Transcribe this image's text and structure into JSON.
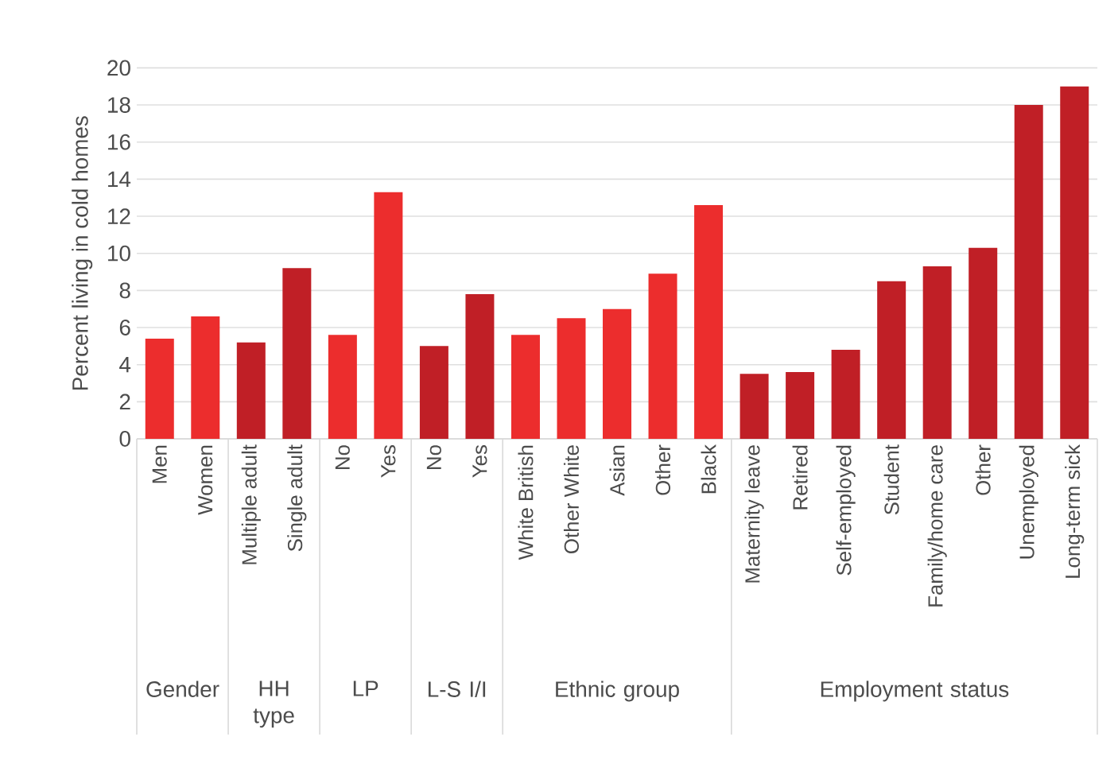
{
  "chart_data": {
    "type": "bar",
    "ylabel": "Percent living in cold homes",
    "categories": [
      "Men",
      "Women",
      "Multiple adult",
      "Single adult",
      "No",
      "Yes",
      "No",
      "Yes",
      "White British",
      "Other White",
      "Asian",
      "Other",
      "Black",
      "Maternity leave",
      "Retired",
      "Self-employed",
      "Student",
      "Family/home care",
      "Other",
      "Unemployed",
      "Long-term sick"
    ],
    "values": [
      5.4,
      6.6,
      5.2,
      9.2,
      5.6,
      13.3,
      5.0,
      7.8,
      5.6,
      6.5,
      7.0,
      8.9,
      12.6,
      3.5,
      3.6,
      4.8,
      8.5,
      9.3,
      10.3,
      18.0,
      19.0
    ],
    "colors": [
      "#ec2d2d",
      "#ec2d2d",
      "#c01f26",
      "#c01f26",
      "#ec2d2d",
      "#ec2d2d",
      "#c01f26",
      "#c01f26",
      "#ec2d2d",
      "#ec2d2d",
      "#ec2d2d",
      "#ec2d2d",
      "#ec2d2d",
      "#c01f26",
      "#c01f26",
      "#c01f26",
      "#c01f26",
      "#c01f26",
      "#c01f26",
      "#c01f26",
      "#c01f26"
    ],
    "annotations": [
      "Gender",
      "HH type",
      "LP",
      "L-S I/I",
      "Ethnic group",
      "Employment status"
    ],
    "ylim": [
      0,
      20
    ],
    "yticks": [
      0,
      2,
      4,
      6,
      8,
      10,
      12,
      14,
      16,
      18,
      20
    ],
    "grid": "y"
  }
}
